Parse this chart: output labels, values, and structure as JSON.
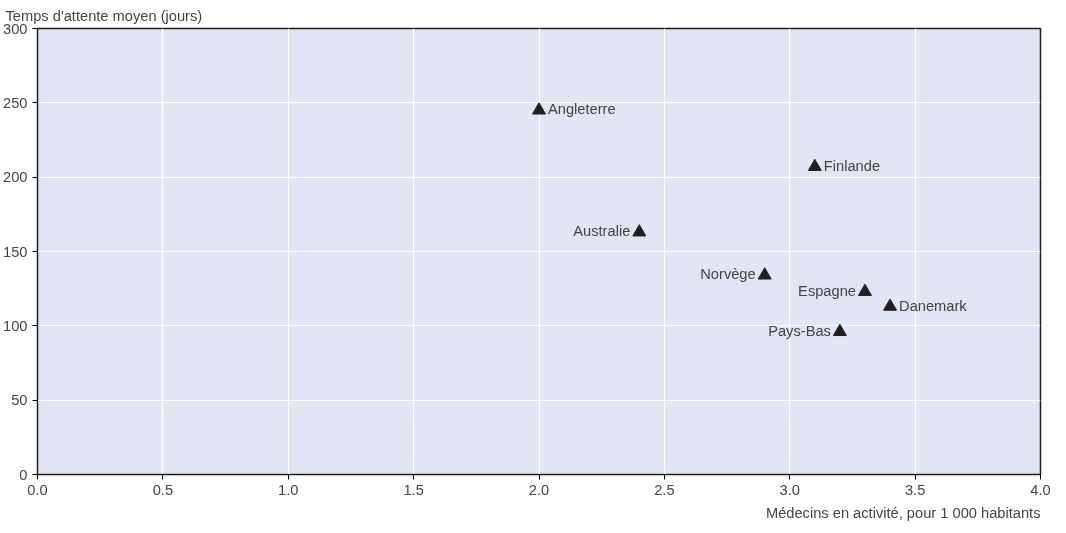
{
  "chart_data": {
    "type": "scatter",
    "xlabel": "Médecins en activité, pour 1 000 habitants",
    "ylabel": "Temps d'attente moyen (jours)",
    "x": [
      2.0,
      3.1,
      2.4,
      2.9,
      3.3,
      3.4,
      3.2
    ],
    "series": [
      {
        "color": "#231f20",
        "values": [
          245,
          207,
          163,
          134,
          123,
          113,
          96
        ]
      }
    ],
    "annotations": [
      {
        "text": "Angleterre",
        "x": 2.0,
        "y": 245
      },
      {
        "text": "Finlande",
        "x": 3.1,
        "y": 207
      },
      {
        "text": "Australie",
        "x": 2.4,
        "y": 163
      },
      {
        "text": "Norvège",
        "x": 2.9,
        "y": 134
      },
      {
        "text": "Espagne",
        "x": 3.3,
        "y": 123
      },
      {
        "text": "Danemark",
        "x": 3.4,
        "y": 113
      },
      {
        "text": "Pays-Bas",
        "x": 3.2,
        "y": 96
      }
    ],
    "xlim": [
      0,
      4
    ],
    "ylim": [
      0,
      300
    ],
    "xticks": [
      {
        "value": 0,
        "label": "0.0"
      },
      {
        "value": 0.5,
        "label": "0.5"
      },
      {
        "value": 1,
        "label": "1.0"
      },
      {
        "value": 1.5,
        "label": "1.5"
      },
      {
        "value": 2,
        "label": "2.0"
      },
      {
        "value": 2.5,
        "label": "2.5"
      },
      {
        "value": 3,
        "label": "3.0"
      },
      {
        "value": 3.5,
        "label": "3.5"
      },
      {
        "value": 4,
        "label": "4.0"
      }
    ],
    "yticks": [
      0,
      50,
      100,
      150,
      200,
      250,
      300
    ],
    "grid": true,
    "marker": "triangle"
  }
}
